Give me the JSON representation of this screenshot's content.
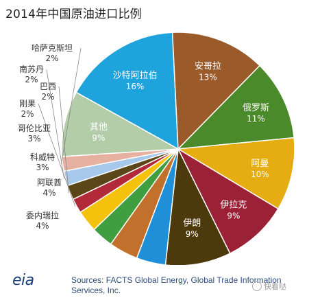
{
  "chart_data": {
    "type": "pie",
    "title": "2014年中国原油进口比例",
    "slices": [
      {
        "label": "沙特阿拉伯",
        "value": 16,
        "pct": "16%",
        "color": "#1ea3dc",
        "inside": true
      },
      {
        "label": "安哥拉",
        "value": 13,
        "pct": "13%",
        "color": "#9a5a2a",
        "inside": true
      },
      {
        "label": "俄罗斯",
        "value": 11,
        "pct": "11%",
        "color": "#4b8a2a",
        "inside": true
      },
      {
        "label": "阿曼",
        "value": 10,
        "pct": "10%",
        "color": "#e6ad13",
        "inside": true
      },
      {
        "label": "伊拉克",
        "value": 9,
        "pct": "9%",
        "color": "#9b2236",
        "inside": true
      },
      {
        "label": "伊朗",
        "value": 9,
        "pct": "9%",
        "color": "#4c3a0d",
        "inside": true
      },
      {
        "label": "委内瑞拉",
        "value": 4,
        "pct": "4%",
        "color": "#1f8fd8",
        "inside": false
      },
      {
        "label": "阿联酋",
        "value": 4,
        "pct": "4%",
        "color": "#c2712c",
        "inside": false
      },
      {
        "label": "科威特",
        "value": 3,
        "pct": "3%",
        "color": "#3f9e3f",
        "inside": false
      },
      {
        "label": "哥伦比亚",
        "value": 3,
        "pct": "3%",
        "color": "#f4c20d",
        "inside": false
      },
      {
        "label": "刚果",
        "value": 2,
        "pct": "2%",
        "color": "#b22a3a",
        "inside": false
      },
      {
        "label": "巴西",
        "value": 2,
        "pct": "2%",
        "color": "#5a4616",
        "inside": false
      },
      {
        "label": "南苏丹",
        "value": 2,
        "pct": "2%",
        "color": "#a6c8ea",
        "inside": false
      },
      {
        "label": "哈萨克斯坦",
        "value": 2,
        "pct": "2%",
        "color": "#e7b1a2",
        "inside": false
      },
      {
        "label": "其他",
        "value": 9,
        "pct": "9%",
        "color": "#b3cda8",
        "inside": true
      }
    ]
  },
  "footer": {
    "logo_text": "eia",
    "source": "Sources: FACTS Global Energy, Global Trade Information Services, Inc.",
    "watermark": "快看哒"
  }
}
